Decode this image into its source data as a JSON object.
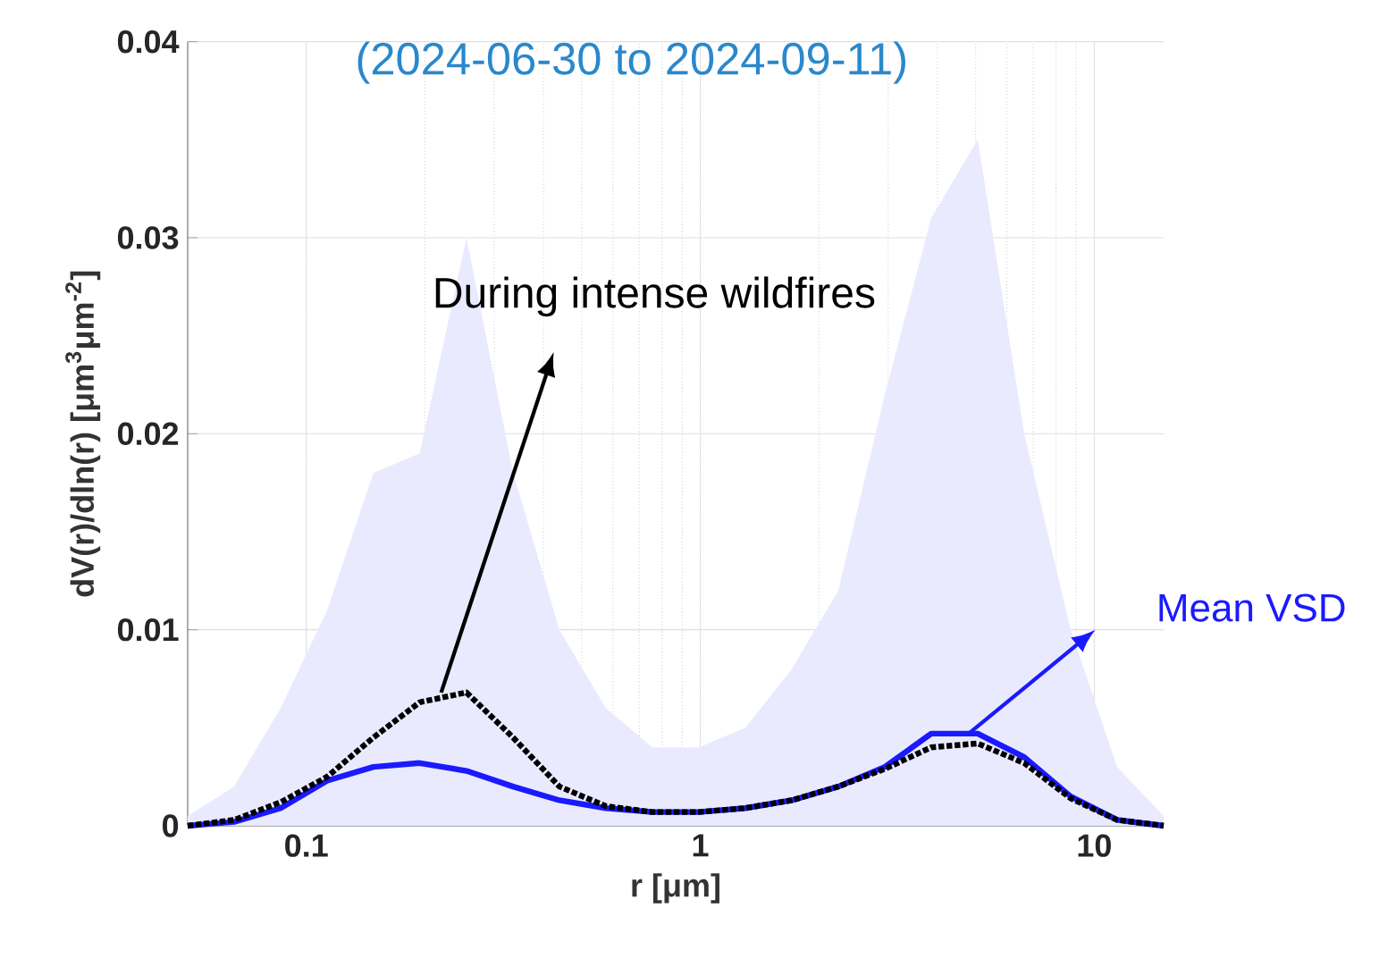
{
  "chart_data": {
    "type": "line",
    "title": "(2024-06-30 to 2024-09-11)",
    "xlabel": "r [μm]",
    "ylabel": "dV(r)/dln(r) [μm$^{3}$μm$^{-2}$]",
    "x": [
      0.05,
      0.0656,
      0.0861,
      0.113,
      0.148,
      0.194,
      0.255,
      0.335,
      0.439,
      0.576,
      0.756,
      0.992,
      1.302,
      1.708,
      2.241,
      2.94,
      3.857,
      5.061,
      6.641,
      8.713,
      11.43,
      15
    ],
    "series": [
      {
        "name": "Mean VSD",
        "color": "#1a1aff",
        "line_style": "solid",
        "values": [
          0,
          0.0002,
          0.0009,
          0.0023,
          0.003,
          0.0032,
          0.0028,
          0.002,
          0.0013,
          0.0009,
          0.0007,
          0.0007,
          0.0009,
          0.0013,
          0.002,
          0.003,
          0.0047,
          0.0047,
          0.0035,
          0.0015,
          0.0003,
          0
        ],
        "lower": [
          0,
          0,
          0,
          0,
          0,
          0,
          0,
          0,
          0,
          0,
          0,
          0,
          0,
          0,
          0,
          0,
          0,
          0,
          0,
          0,
          0,
          0
        ],
        "upper": [
          0.0005,
          0.002,
          0.006,
          0.011,
          0.018,
          0.019,
          0.03,
          0.018,
          0.01,
          0.006,
          0.004,
          0.004,
          0.005,
          0.008,
          0.012,
          0.022,
          0.031,
          0.035,
          0.02,
          0.01,
          0.003,
          0.0005
        ]
      },
      {
        "name": "During intense wildfires",
        "color": "#000000",
        "line_style": "dotted",
        "values": [
          0,
          0.0003,
          0.0012,
          0.0025,
          0.0045,
          0.0063,
          0.0068,
          0.0045,
          0.002,
          0.001,
          0.0007,
          0.0007,
          0.0009,
          0.0013,
          0.002,
          0.0029,
          0.004,
          0.0042,
          0.0032,
          0.0014,
          0.0003,
          0
        ]
      }
    ],
    "log": "x",
    "xlim": [
      0.05,
      15
    ],
    "xticks": [
      0.1,
      1,
      10
    ],
    "ylim": [
      0,
      0.04
    ],
    "yticks": [
      0,
      0.01,
      0.02,
      0.03,
      0.04
    ],
    "grid": true
  }
}
